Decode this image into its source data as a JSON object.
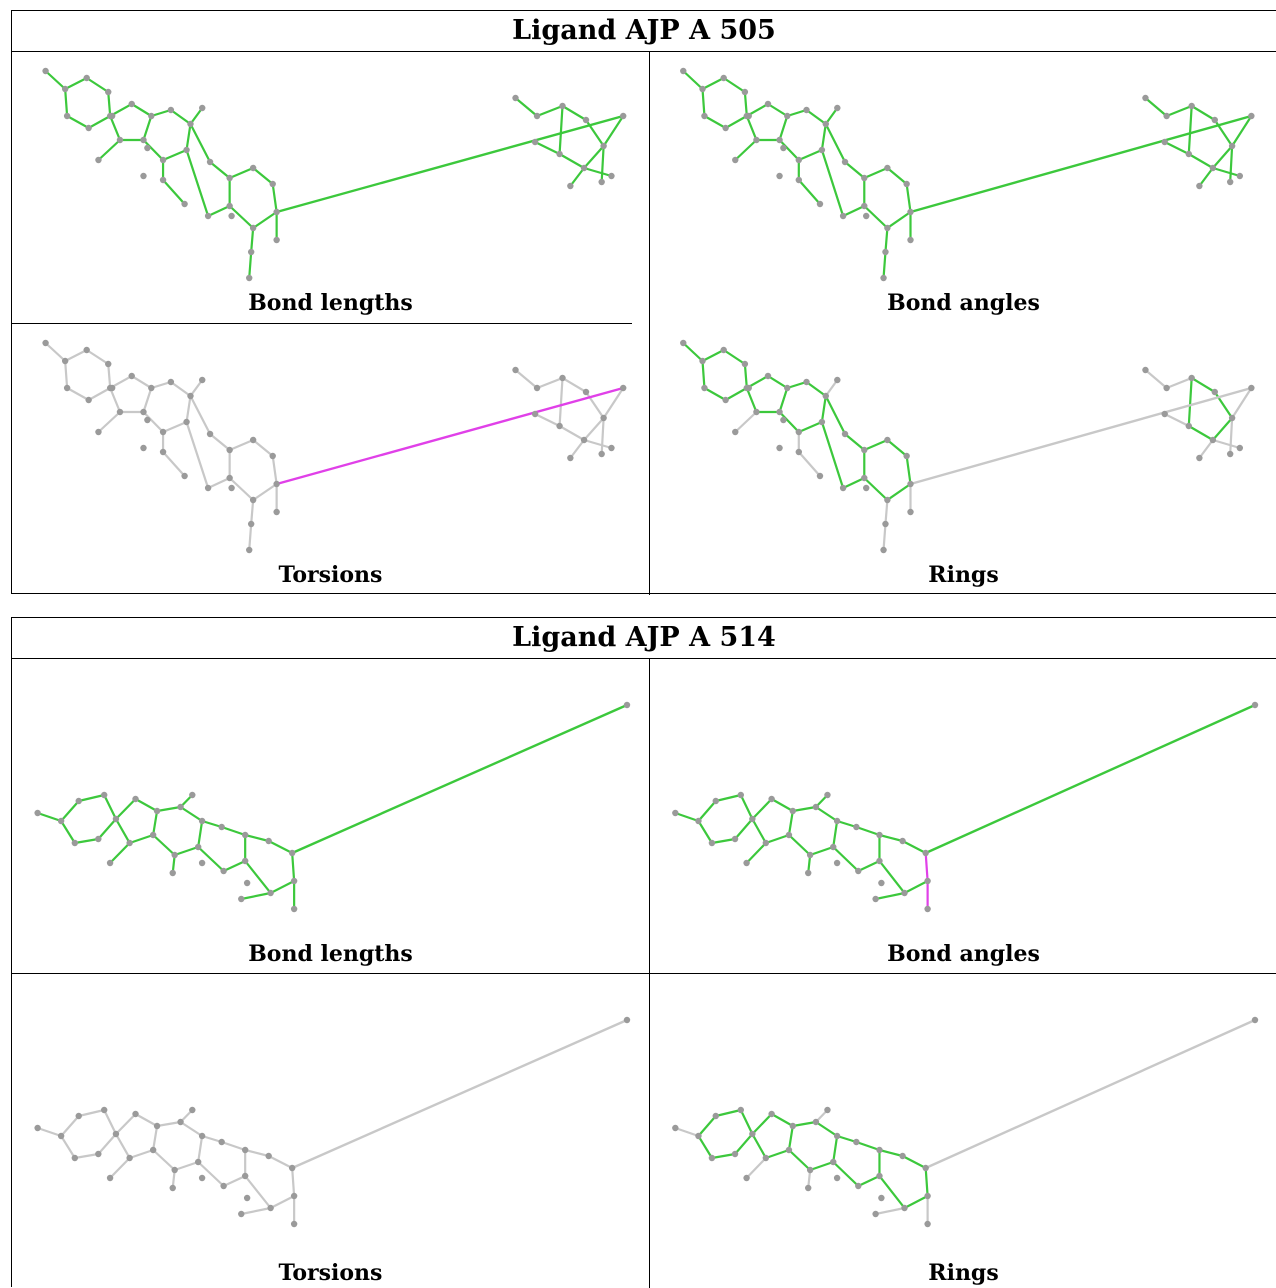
{
  "colors": {
    "ok_bond": "#3cc83c",
    "outlier_bond": "#e040e8",
    "neutral_bond": "#c8c8c8",
    "atom": "#9a9a9a"
  },
  "blocks": [
    {
      "title": "Ligand AJP A 505",
      "panels": [
        {
          "caption": "Bond lengths",
          "mode": "lengths"
        },
        {
          "caption": "Bond angles",
          "mode": "angles"
        },
        {
          "caption": "Torsions",
          "mode": "torsions"
        },
        {
          "caption": "Rings",
          "mode": "rings"
        }
      ]
    },
    {
      "title": "Ligand AJP A 514",
      "panels": [
        {
          "caption": "Bond lengths",
          "mode": "lengths"
        },
        {
          "caption": "Bond angles",
          "mode": "angles"
        },
        {
          "caption": "Torsions",
          "mode": "torsions"
        },
        {
          "caption": "Rings",
          "mode": "rings"
        }
      ]
    }
  ]
}
